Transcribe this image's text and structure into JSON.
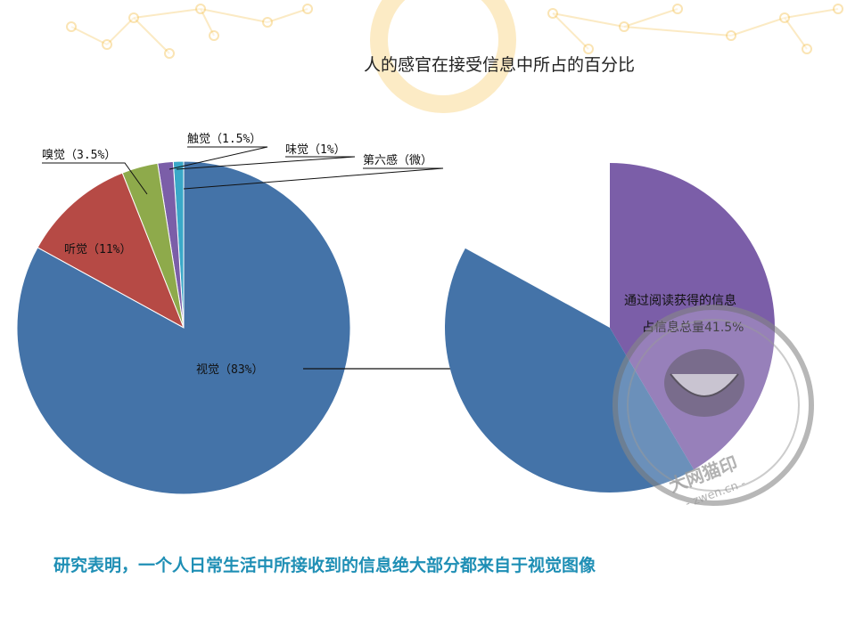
{
  "title": "人的感官在接受信息中所占的百分比",
  "caption": "研究表明，一个人日常生活中所接收到的信息绝大部分都来自于视觉图像",
  "colors": {
    "accent_text": "#1f8fb5",
    "bg_deco": "#f6c55a"
  },
  "watermark": {
    "line1": "大网猫印",
    "line2": "- zwen.cn -"
  },
  "chart_data": [
    {
      "type": "pie",
      "slices": [
        {
          "label": "视觉（83%）",
          "value": 83,
          "color": "#4473a8"
        },
        {
          "label": "听觉（11%）",
          "value": 11,
          "color": "#b64a45"
        },
        {
          "label": "嗅觉（3.5%）",
          "value": 3.5,
          "color": "#8eaa4b"
        },
        {
          "label": "触觉（1.5%）",
          "value": 1.5,
          "color": "#7b5ea8"
        },
        {
          "label": "味觉（1%）",
          "value": 1,
          "color": "#3aa8c8"
        },
        {
          "label": "第六感（微）",
          "value": 0,
          "color": "#ffffff"
        }
      ]
    },
    {
      "type": "pie",
      "slices": [
        {
          "label": "通过阅读获得的信息",
          "label2": "占信息总量41.5%",
          "value": 41.5,
          "color": "#7b5ea8"
        },
        {
          "label": "",
          "value": 41.5,
          "color": "#4473a8"
        },
        {
          "label": "",
          "value": 17,
          "color": "#ffffff"
        }
      ]
    }
  ]
}
